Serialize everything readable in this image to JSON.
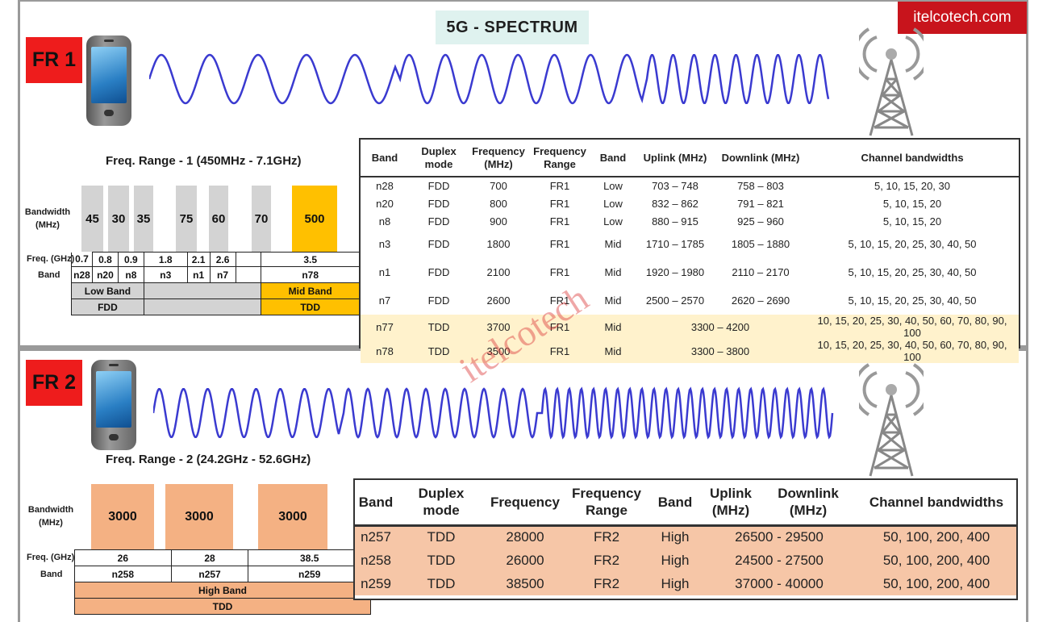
{
  "header": {
    "title": "5G - SPECTRUM",
    "brand": "itelcotech.com"
  },
  "watermark": "itelcotech",
  "fr1": {
    "label": "FR 1",
    "range_title": "Freq. Range - 1 (450MHz - 7.1GHz)",
    "bandwidth_label": [
      "Bandwidth",
      "(MHz)"
    ],
    "freq_label": "Freq. (GHz)",
    "band_label": "Band",
    "bars": [
      {
        "bandwidth": "45",
        "freq": "0.7",
        "band": "n28"
      },
      {
        "bandwidth": "30",
        "freq": "0.8",
        "band": "n20"
      },
      {
        "bandwidth": "35",
        "freq": "0.9",
        "band": "n8"
      },
      {
        "bandwidth": "75",
        "freq": "1.8",
        "band": "n3"
      },
      {
        "bandwidth": "60",
        "freq": "2.1",
        "band": "n1"
      },
      {
        "bandwidth": "70",
        "freq": "2.6",
        "band": "n7"
      },
      {
        "bandwidth": "500",
        "freq": "3.5",
        "band": "n78"
      }
    ],
    "groups": {
      "low_band": "Low Band",
      "mid_band": "Mid Band",
      "fdd": "FDD",
      "tdd": "TDD"
    },
    "colors": {
      "fdd_bar": "#d3d3d3",
      "tdd_bar": "#ffc000",
      "tdd_row": "#fff2cc"
    },
    "table": {
      "headers": [
        "Band",
        "Duplex mode",
        "Frequency (MHz)",
        "Frequency Range",
        "Band",
        "Uplink (MHz)",
        "Downlink (MHz)",
        "Channel bandwidths"
      ],
      "rows": [
        {
          "band": "n28",
          "duplex": "FDD",
          "freq": "700",
          "range": "FR1",
          "cls": "Low",
          "uplink": "703 – 748",
          "downlink": "758 – 803",
          "channels": "5, 10, 15, 20, 30"
        },
        {
          "band": "n20",
          "duplex": "FDD",
          "freq": "800",
          "range": "FR1",
          "cls": "Low",
          "uplink": "832 – 862",
          "downlink": "791 – 821",
          "channels": "5, 10, 15, 20"
        },
        {
          "band": "n8",
          "duplex": "FDD",
          "freq": "900",
          "range": "FR1",
          "cls": "Low",
          "uplink": "880 – 915",
          "downlink": "925 – 960",
          "channels": "5, 10, 15, 20"
        },
        {
          "band": "n3",
          "duplex": "FDD",
          "freq": "1800",
          "range": "FR1",
          "cls": "Mid",
          "uplink": "1710 – 1785",
          "downlink": "1805 – 1880",
          "channels": "5, 10, 15, 20, 25, 30, 40, 50"
        },
        {
          "band": "n1",
          "duplex": "FDD",
          "freq": "2100",
          "range": "FR1",
          "cls": "Mid",
          "uplink": "1920 – 1980",
          "downlink": "2110 – 2170",
          "channels": "5, 10, 15, 20, 25, 30, 40, 50"
        },
        {
          "band": "n7",
          "duplex": "FDD",
          "freq": "2600",
          "range": "FR1",
          "cls": "Mid",
          "uplink": "2500 – 2570",
          "downlink": "2620 – 2690",
          "channels": "5, 10, 15, 20, 25, 30, 40, 50"
        },
        {
          "band": "n77",
          "duplex": "TDD",
          "freq": "3700",
          "range": "FR1",
          "cls": "Mid",
          "updown": "3300 – 4200",
          "channels": "10, 15, 20, 25, 30, 40, 50, 60, 70, 80, 90, 100"
        },
        {
          "band": "n78",
          "duplex": "TDD",
          "freq": "3500",
          "range": "FR1",
          "cls": "Mid",
          "updown": "3300 – 3800",
          "channels": "10, 15, 20, 25, 30, 40, 50, 60, 70, 80, 90, 100"
        }
      ]
    }
  },
  "fr2": {
    "label": "FR 2",
    "range_title": "Freq. Range - 2 (24.2GHz - 52.6GHz)",
    "bandwidth_label": [
      "Bandwidth",
      "(MHz)"
    ],
    "freq_label": "Freq. (GHz)",
    "band_label": "Band",
    "bars": [
      {
        "bandwidth": "3000",
        "freq": "26",
        "band": "n258"
      },
      {
        "bandwidth": "3000",
        "freq": "28",
        "band": "n257"
      },
      {
        "bandwidth": "3000",
        "freq": "38.5",
        "band": "n259"
      }
    ],
    "groups": {
      "high_band": "High Band",
      "tdd": "TDD"
    },
    "colors": {
      "bar": "#f4b183",
      "row": "#f6c6a7"
    },
    "table": {
      "headers": [
        "Band",
        "Duplex mode",
        "Frequency",
        "Frequency Range",
        "Band",
        "Uplink (MHz)",
        "Downlink (MHz)",
        "Channel bandwidths"
      ],
      "rows": [
        {
          "band": "n257",
          "duplex": "TDD",
          "freq": "28000",
          "range": "FR2",
          "cls": "High",
          "updown": "26500 - 29500",
          "channels": "50, 100, 200, 400"
        },
        {
          "band": "n258",
          "duplex": "TDD",
          "freq": "26000",
          "range": "FR2",
          "cls": "High",
          "updown": "24500 - 27500",
          "channels": "50, 100, 200, 400"
        },
        {
          "band": "n259",
          "duplex": "TDD",
          "freq": "38500",
          "range": "FR2",
          "cls": "High",
          "updown": "37000 - 40000",
          "channels": "50, 100, 200, 400"
        }
      ]
    }
  }
}
